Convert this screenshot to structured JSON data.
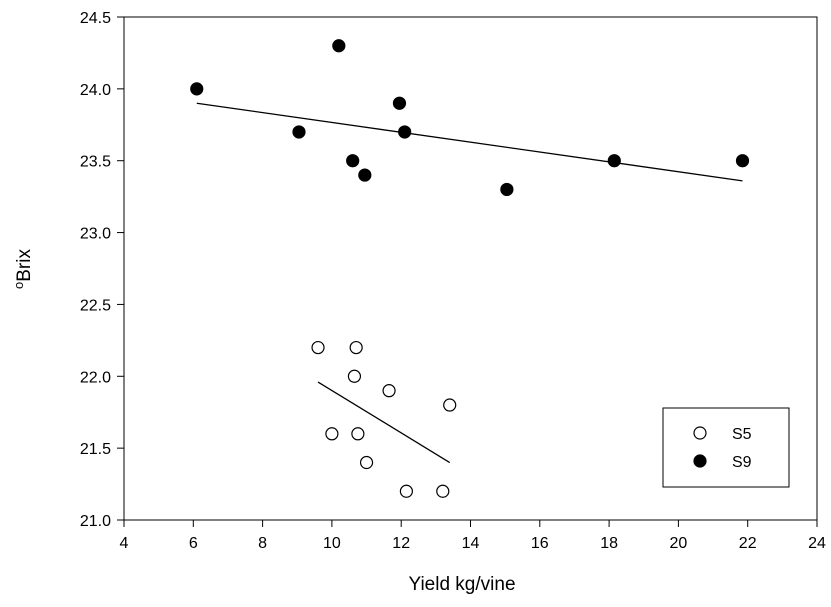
{
  "chart_data": {
    "type": "scatter",
    "xlabel": "Yield kg/vine",
    "ylabel_sup": "o",
    "ylabel": "Brix",
    "xlim": [
      4,
      24
    ],
    "ylim": [
      21.0,
      24.5
    ],
    "xticks": [
      "4",
      "6",
      "8",
      "10",
      "12",
      "14",
      "16",
      "18",
      "20",
      "22",
      "24"
    ],
    "yticks": [
      "21.0",
      "21.5",
      "22.0",
      "22.5",
      "23.0",
      "23.5",
      "24.0",
      "24.5"
    ],
    "grid": false,
    "legend_position": "bottom-right",
    "series": [
      {
        "name": "S5",
        "marker": "open-circle",
        "color": "#000000",
        "points": [
          [
            9.6,
            22.2
          ],
          [
            10.7,
            22.2
          ],
          [
            10.65,
            22.0
          ],
          [
            11.65,
            21.9
          ],
          [
            13.4,
            21.8
          ],
          [
            10.0,
            21.6
          ],
          [
            10.75,
            21.6
          ],
          [
            11.0,
            21.4
          ],
          [
            12.15,
            21.2
          ],
          [
            13.2,
            21.2
          ]
        ],
        "trendline": [
          [
            9.6,
            21.96
          ],
          [
            13.4,
            21.4
          ]
        ]
      },
      {
        "name": "S9",
        "marker": "filled-circle",
        "color": "#000000",
        "points": [
          [
            6.1,
            24.0
          ],
          [
            10.2,
            24.3
          ],
          [
            9.05,
            23.7
          ],
          [
            11.95,
            23.9
          ],
          [
            12.1,
            23.7
          ],
          [
            10.6,
            23.5
          ],
          [
            10.95,
            23.4
          ],
          [
            15.05,
            23.3
          ],
          [
            18.15,
            23.5
          ],
          [
            21.85,
            23.5
          ]
        ],
        "trendline": [
          [
            6.1,
            23.9
          ],
          [
            21.85,
            23.36
          ]
        ]
      }
    ]
  }
}
